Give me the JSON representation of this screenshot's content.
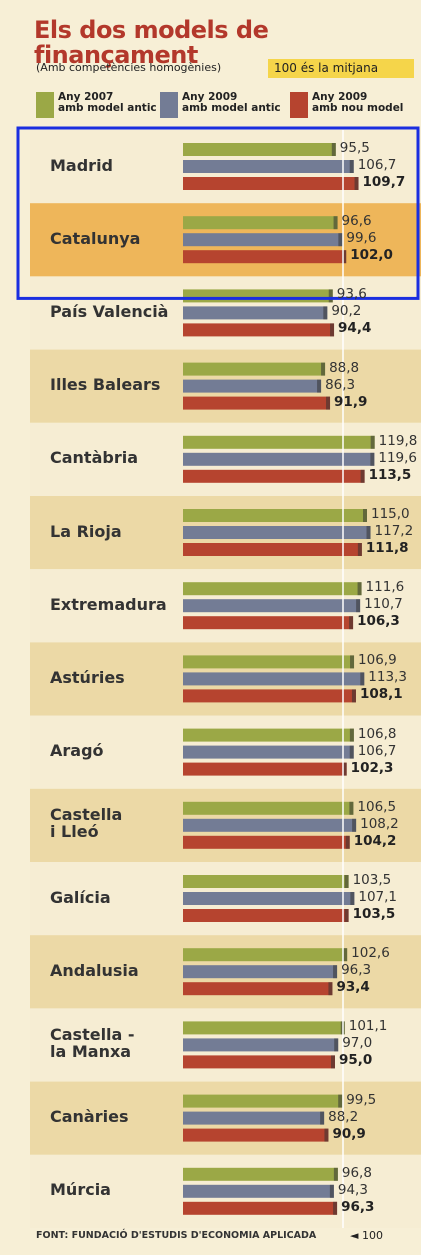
{
  "chart_data": {
    "type": "bar",
    "orientation": "horizontal",
    "title": "Els dos models de finançament",
    "subtitle": "(Amb competències homogènies)",
    "annotation": "100 és la mitjana",
    "source": "FONT: FUNDACIÓ D'ESTUDIS D'ECONOMIA APLICADA",
    "reference_line": {
      "value": 100,
      "label": "◄ 100"
    },
    "xlim": [
      0,
      125
    ],
    "categories": [
      "Madrid",
      "Catalunya",
      "País Valencià",
      "Illes Balears",
      "Cantàbria",
      "La Rioja",
      "Extremadura",
      "Astúries",
      "Aragó",
      "Castella\ni Lleó",
      "Galícia",
      "Andalusia",
      "Castella -\nla Manxa",
      "Canàries",
      "Múrcia"
    ],
    "series": [
      {
        "name": "Any 2007\namb model antic",
        "color": "#9ba846",
        "values": [
          95.5,
          96.6,
          93.6,
          88.8,
          119.8,
          115.0,
          111.6,
          106.9,
          106.8,
          106.5,
          103.5,
          102.6,
          101.1,
          99.5,
          96.8
        ],
        "value_labels": [
          "95,5",
          "96,6",
          "93,6",
          "88,8",
          "119,8",
          "115,0",
          "111,6",
          "106,9",
          "106,8",
          "106,5",
          "103,5",
          "102,6",
          "101,1",
          "99,5",
          "96,8"
        ]
      },
      {
        "name": "Any 2009\namb model antic",
        "color": "#737c95",
        "values": [
          106.7,
          99.6,
          90.2,
          86.3,
          119.6,
          117.2,
          110.7,
          113.3,
          106.7,
          108.2,
          107.1,
          96.3,
          97.0,
          88.2,
          94.3
        ],
        "value_labels": [
          "106,7",
          "99,6",
          "90,2",
          "86,3",
          "119,6",
          "117,2",
          "110,7",
          "113,3",
          "106,7",
          "108,2",
          "107,1",
          "96,3",
          "97,0",
          "88,2",
          "94,3"
        ]
      },
      {
        "name": "Any 2009\namb nou model",
        "color": "#b6442f",
        "values": [
          109.7,
          102.0,
          94.4,
          91.9,
          113.5,
          111.8,
          106.3,
          108.1,
          102.3,
          104.2,
          103.5,
          93.4,
          95.0,
          90.9,
          96.3
        ],
        "value_labels": [
          "109,7",
          "102,0",
          "94,4",
          "91,9",
          "113,5",
          "111,8",
          "106,3",
          "108,1",
          "102,3",
          "104,2",
          "103,5",
          "93,4",
          "95,0",
          "90,9",
          "96,3"
        ]
      }
    ]
  }
}
